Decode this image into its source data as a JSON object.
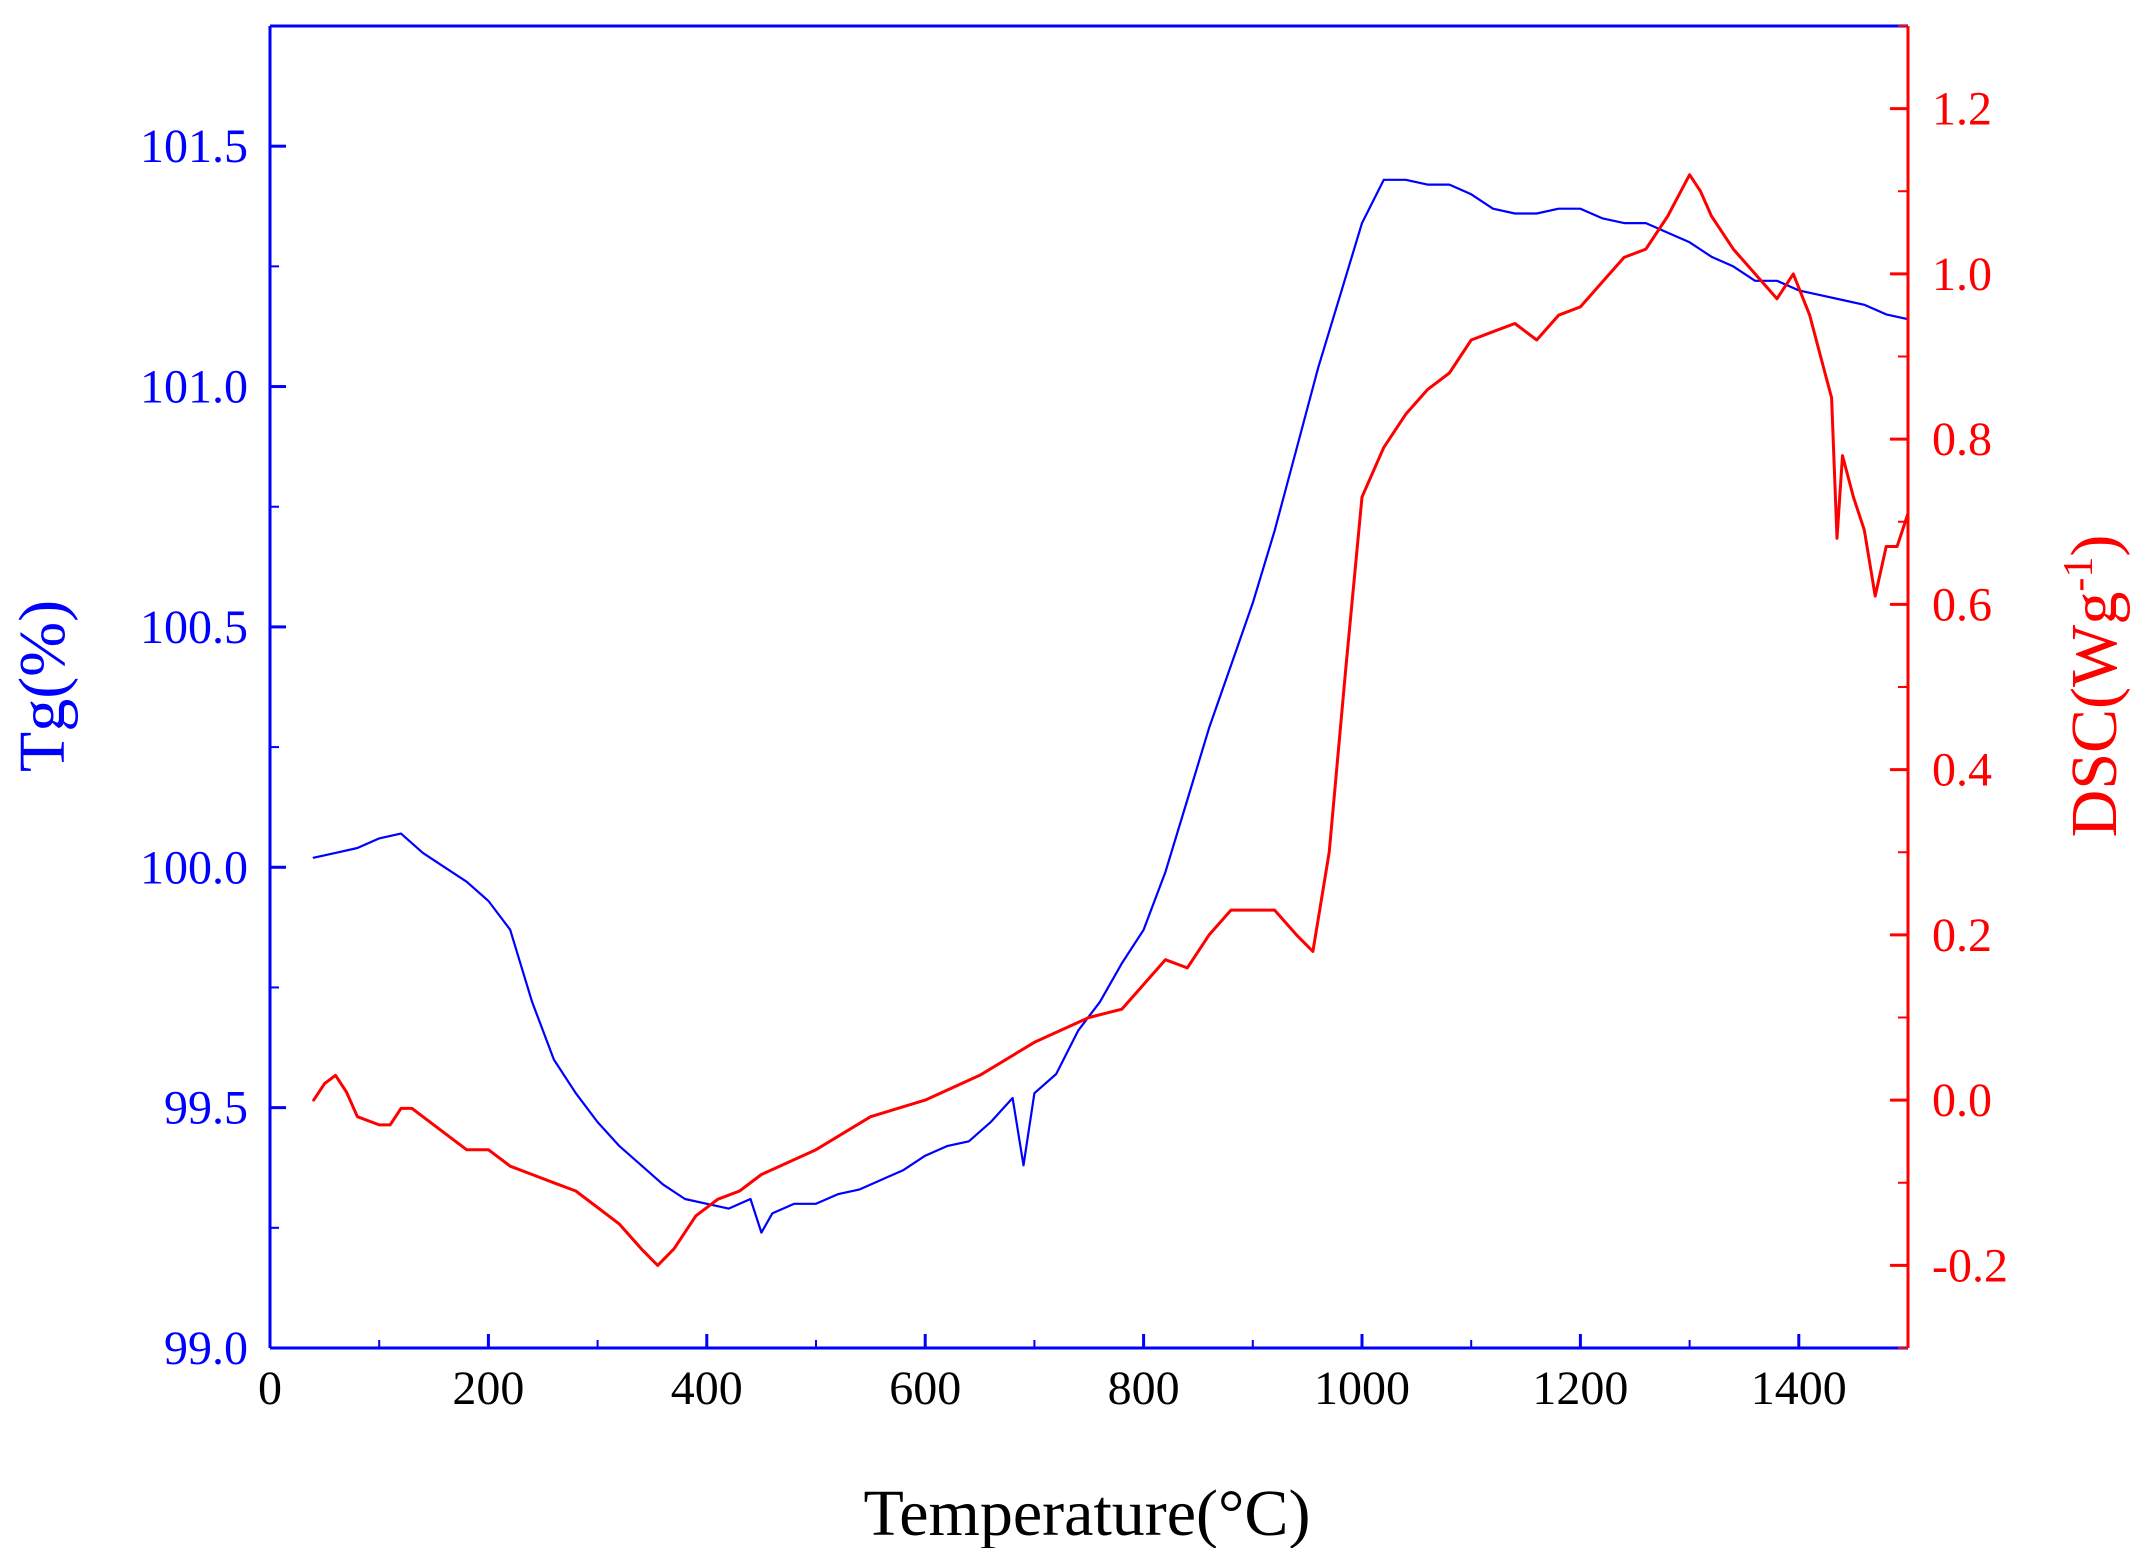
{
  "chart_data": {
    "type": "line",
    "xlabel": "Temperature(°C)",
    "xlim": [
      0,
      1500
    ],
    "xticks": [
      0,
      200,
      400,
      600,
      800,
      1000,
      1200,
      1400
    ],
    "y_left": {
      "label": "Tg(%)",
      "lim": [
        99.0,
        101.75
      ],
      "ticks": [
        "99.0",
        "99.5",
        "100.0",
        "100.5",
        "101.0",
        "101.5"
      ],
      "color": "#0000ff"
    },
    "y_right": {
      "label_main": "DSC(Wg",
      "label_sup": "-1",
      "label_close": ")",
      "lim": [
        -0.3,
        1.3
      ],
      "ticks": [
        "-0.2",
        "0.0",
        "0.2",
        "0.4",
        "0.6",
        "0.8",
        "1.0",
        "1.2"
      ],
      "color": "#ff0000"
    },
    "grid": false,
    "legend": "none",
    "series": [
      {
        "name": "TG",
        "axis": "left",
        "color": "#0000ff",
        "x": [
          40,
          60,
          80,
          100,
          120,
          140,
          160,
          180,
          200,
          220,
          240,
          260,
          280,
          300,
          320,
          340,
          360,
          380,
          400,
          420,
          440,
          450,
          460,
          480,
          500,
          520,
          540,
          560,
          580,
          600,
          620,
          640,
          660,
          680,
          690,
          700,
          720,
          740,
          760,
          780,
          800,
          820,
          840,
          860,
          880,
          900,
          920,
          940,
          960,
          980,
          1000,
          1020,
          1040,
          1060,
          1080,
          1100,
          1120,
          1140,
          1160,
          1180,
          1200,
          1220,
          1240,
          1260,
          1280,
          1300,
          1320,
          1340,
          1360,
          1380,
          1400,
          1420,
          1440,
          1460,
          1480,
          1500
        ],
        "values": [
          100.02,
          100.03,
          100.04,
          100.06,
          100.07,
          100.03,
          100.0,
          99.97,
          99.93,
          99.87,
          99.72,
          99.6,
          99.53,
          99.47,
          99.42,
          99.38,
          99.34,
          99.31,
          99.3,
          99.29,
          99.31,
          99.24,
          99.28,
          99.3,
          99.3,
          99.32,
          99.33,
          99.35,
          99.37,
          99.4,
          99.42,
          99.43,
          99.47,
          99.52,
          99.38,
          99.53,
          99.57,
          99.66,
          99.72,
          99.8,
          99.87,
          99.99,
          100.14,
          100.29,
          100.42,
          100.55,
          100.7,
          100.87,
          101.04,
          101.19,
          101.34,
          101.43,
          101.43,
          101.42,
          101.42,
          101.4,
          101.37,
          101.36,
          101.36,
          101.37,
          101.37,
          101.35,
          101.34,
          101.34,
          101.32,
          101.3,
          101.27,
          101.25,
          101.22,
          101.22,
          101.2,
          101.19,
          101.18,
          101.17,
          101.15,
          101.14
        ]
      },
      {
        "name": "DSC",
        "axis": "right",
        "color": "#ff0000",
        "x": [
          40,
          50,
          60,
          70,
          80,
          100,
          110,
          120,
          130,
          140,
          160,
          180,
          200,
          220,
          240,
          260,
          280,
          300,
          320,
          340,
          355,
          370,
          390,
          410,
          430,
          450,
          500,
          550,
          600,
          650,
          700,
          750,
          780,
          800,
          820,
          840,
          860,
          880,
          900,
          920,
          940,
          955,
          970,
          985,
          1000,
          1020,
          1040,
          1060,
          1080,
          1100,
          1120,
          1140,
          1160,
          1180,
          1200,
          1220,
          1240,
          1260,
          1280,
          1300,
          1310,
          1320,
          1340,
          1360,
          1380,
          1395,
          1410,
          1420,
          1430,
          1435,
          1440,
          1450,
          1460,
          1470,
          1480,
          1490,
          1500
        ],
        "values": [
          0.0,
          0.02,
          0.03,
          0.01,
          -0.02,
          -0.03,
          -0.03,
          -0.01,
          -0.01,
          -0.02,
          -0.04,
          -0.06,
          -0.06,
          -0.08,
          -0.09,
          -0.1,
          -0.11,
          -0.13,
          -0.15,
          -0.18,
          -0.2,
          -0.18,
          -0.14,
          -0.12,
          -0.11,
          -0.09,
          -0.06,
          -0.02,
          0.0,
          0.03,
          0.07,
          0.1,
          0.11,
          0.14,
          0.17,
          0.16,
          0.2,
          0.23,
          0.23,
          0.23,
          0.2,
          0.18,
          0.3,
          0.52,
          0.73,
          0.79,
          0.83,
          0.86,
          0.88,
          0.92,
          0.93,
          0.94,
          0.92,
          0.95,
          0.96,
          0.99,
          1.02,
          1.03,
          1.07,
          1.12,
          1.1,
          1.07,
          1.03,
          1.0,
          0.97,
          1.0,
          0.95,
          0.9,
          0.85,
          0.68,
          0.78,
          0.73,
          0.69,
          0.61,
          0.67,
          0.67,
          0.71
        ]
      }
    ]
  }
}
